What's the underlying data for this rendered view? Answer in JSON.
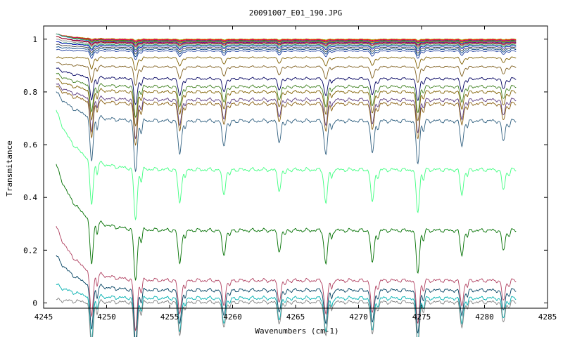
{
  "chart_data": {
    "type": "line",
    "title": "20091007_E01_190.JPG",
    "xlabel": "Wavenumbers (cm-1)",
    "ylabel": "Transmitance",
    "xlim": [
      4245,
      4285
    ],
    "ylim": [
      -0.02,
      1.05
    ],
    "x_ticks": [
      4245,
      4250,
      4255,
      4260,
      4265,
      4270,
      4275,
      4280,
      4285
    ],
    "y_ticks": [
      0,
      0.2,
      0.4,
      0.6,
      0.8,
      1
    ],
    "x_tick_labels": [
      "4245",
      "4250",
      "4255",
      "4260",
      "4265",
      "4270",
      "4275",
      "4280",
      "4285"
    ],
    "y_tick_labels": [
      "0",
      "0.2",
      "0.4",
      "0.6",
      "0.8",
      "1"
    ],
    "x_range_data": [
      4246,
      4282.5
    ],
    "grid": false,
    "legend": "none",
    "absorption_lines": [
      4248.8,
      4252.3,
      4255.8,
      4259.3,
      4263.7,
      4267.4,
      4271.1,
      4274.7,
      4278.2,
      4281.5
    ],
    "series": [
      {
        "baseline": 1.0,
        "start": 1.02,
        "color": "#a0a000"
      },
      {
        "baseline": 0.998,
        "start": 1.02,
        "color": "#ff0000"
      },
      {
        "baseline": 0.996,
        "start": 1.02,
        "color": "#c000c0"
      },
      {
        "baseline": 0.994,
        "start": 1.02,
        "color": "#008000"
      },
      {
        "baseline": 0.992,
        "start": 1.02,
        "color": "#ff8000"
      },
      {
        "baseline": 0.99,
        "start": 1.02,
        "color": "#00a0a0"
      },
      {
        "baseline": 0.988,
        "start": 1.01,
        "color": "#800080"
      },
      {
        "baseline": 0.985,
        "start": 1.01,
        "color": "#a00000"
      },
      {
        "baseline": 0.982,
        "start": 1.0,
        "color": "#808080"
      },
      {
        "baseline": 0.978,
        "start": 0.99,
        "color": "#20a060"
      },
      {
        "baseline": 0.974,
        "start": 0.99,
        "color": "#0000c0"
      },
      {
        "baseline": 0.968,
        "start": 0.98,
        "color": "#404040"
      },
      {
        "baseline": 0.962,
        "start": 0.97,
        "color": "#004080"
      },
      {
        "baseline": 0.955,
        "start": 0.96,
        "color": "#2040a0"
      },
      {
        "baseline": 0.93,
        "start": 0.93,
        "color": "#806000"
      },
      {
        "baseline": 0.895,
        "start": 0.91,
        "color": "#806020"
      },
      {
        "baseline": 0.85,
        "start": 0.89,
        "color": "#000060"
      },
      {
        "baseline": 0.82,
        "start": 0.87,
        "color": "#408020"
      },
      {
        "baseline": 0.8,
        "start": 0.85,
        "color": "#806000"
      },
      {
        "baseline": 0.77,
        "start": 0.83,
        "color": "#5a3a80"
      },
      {
        "baseline": 0.755,
        "start": 0.82,
        "color": "#8a6010"
      },
      {
        "baseline": 0.69,
        "start": 0.8,
        "color": "#306080"
      },
      {
        "baseline": 0.505,
        "start": 0.73,
        "color": "#40ff80"
      },
      {
        "baseline": 0.275,
        "start": 0.525,
        "color": "#007000"
      },
      {
        "baseline": 0.085,
        "start": 0.29,
        "color": "#b04060"
      },
      {
        "baseline": 0.048,
        "start": 0.18,
        "color": "#004060"
      },
      {
        "baseline": 0.018,
        "start": 0.07,
        "color": "#00b0b0"
      },
      {
        "baseline": 0.003,
        "start": 0.012,
        "color": "#808080"
      }
    ]
  }
}
